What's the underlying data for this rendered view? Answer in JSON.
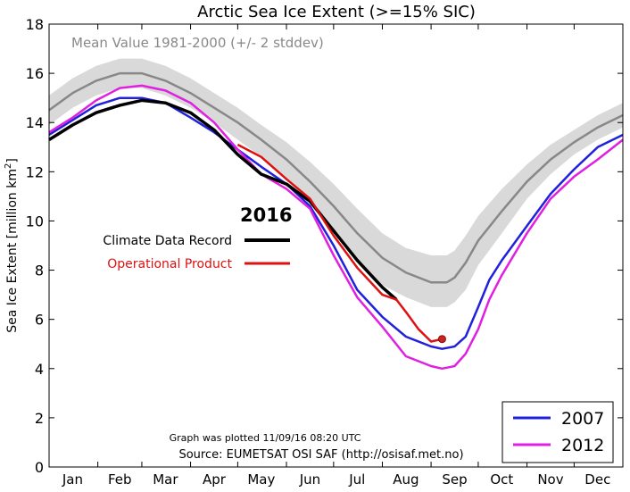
{
  "chart_data": {
    "type": "line",
    "title": "Arctic Sea Ice Extent (>=15% SIC)",
    "ylabel": "Sea Ice Extent [million km",
    "ylabel_sup": "2",
    "ylabel_close": "]",
    "xlabel": "",
    "ylim": [
      0,
      18
    ],
    "xlim": [
      0,
      365
    ],
    "yticks": [
      0,
      2,
      4,
      6,
      8,
      10,
      12,
      14,
      16,
      18
    ],
    "months": [
      {
        "label": "Jan",
        "start": 0,
        "center": 15
      },
      {
        "label": "Feb",
        "start": 31,
        "center": 45
      },
      {
        "label": "Mar",
        "start": 59,
        "center": 74
      },
      {
        "label": "Apr",
        "start": 90,
        "center": 105
      },
      {
        "label": "May",
        "start": 120,
        "center": 135
      },
      {
        "label": "Jun",
        "start": 151,
        "center": 166
      },
      {
        "label": "Jul",
        "start": 181,
        "center": 196
      },
      {
        "label": "Aug",
        "start": 212,
        "center": 227
      },
      {
        "label": "Sep",
        "start": 243,
        "center": 258
      },
      {
        "label": "Oct",
        "start": 273,
        "center": 288
      },
      {
        "label": "Nov",
        "start": 304,
        "center": 319
      },
      {
        "label": "Dec",
        "start": 334,
        "center": 349
      }
    ],
    "mean_label": "Mean Value 1981-2000 (+/- 2 stddev)",
    "mean": {
      "x": [
        0,
        15,
        30,
        45,
        59,
        74,
        90,
        105,
        120,
        135,
        151,
        166,
        181,
        196,
        212,
        227,
        243,
        253,
        258,
        265,
        273,
        288,
        304,
        319,
        334,
        349,
        365
      ],
      "y": [
        14.5,
        15.2,
        15.7,
        16.0,
        16.0,
        15.7,
        15.2,
        14.6,
        14.0,
        13.3,
        12.5,
        11.6,
        10.6,
        9.5,
        8.5,
        7.9,
        7.5,
        7.5,
        7.7,
        8.3,
        9.2,
        10.4,
        11.6,
        12.5,
        13.2,
        13.8,
        14.3
      ],
      "upper": [
        15.1,
        15.8,
        16.3,
        16.6,
        16.6,
        16.3,
        15.8,
        15.2,
        14.6,
        13.9,
        13.2,
        12.4,
        11.5,
        10.5,
        9.5,
        8.9,
        8.6,
        8.6,
        8.8,
        9.4,
        10.2,
        11.3,
        12.3,
        13.1,
        13.7,
        14.3,
        14.8
      ],
      "lower": [
        13.9,
        14.6,
        15.1,
        15.4,
        15.4,
        15.1,
        14.6,
        14.0,
        13.3,
        12.6,
        11.7,
        10.8,
        9.6,
        8.4,
        7.4,
        6.9,
        6.5,
        6.5,
        6.7,
        7.2,
        8.2,
        9.5,
        10.9,
        11.9,
        12.7,
        13.3,
        13.8
      ]
    },
    "series": [
      {
        "name": "2007",
        "color": "#2020dd",
        "x": [
          0,
          15,
          30,
          45,
          59,
          74,
          90,
          105,
          120,
          135,
          151,
          166,
          181,
          196,
          212,
          227,
          243,
          250,
          258,
          265,
          273,
          280,
          288,
          304,
          319,
          334,
          349,
          365
        ],
        "y": [
          13.5,
          14.1,
          14.7,
          15.0,
          15.0,
          14.8,
          14.2,
          13.6,
          12.9,
          12.2,
          11.5,
          10.6,
          9.0,
          7.2,
          6.1,
          5.3,
          4.9,
          4.8,
          4.9,
          5.3,
          6.5,
          7.6,
          8.4,
          9.8,
          11.1,
          12.1,
          13.0,
          13.5
        ]
      },
      {
        "name": "2012",
        "color": "#e020e0",
        "x": [
          0,
          15,
          30,
          45,
          59,
          74,
          90,
          105,
          120,
          135,
          151,
          166,
          181,
          196,
          212,
          227,
          243,
          250,
          258,
          265,
          273,
          280,
          288,
          304,
          319,
          334,
          349,
          365
        ],
        "y": [
          13.6,
          14.2,
          14.9,
          15.4,
          15.5,
          15.3,
          14.8,
          14.0,
          12.9,
          11.9,
          11.3,
          10.5,
          8.6,
          6.9,
          5.7,
          4.5,
          4.1,
          4.0,
          4.1,
          4.6,
          5.6,
          6.8,
          7.8,
          9.5,
          10.9,
          11.8,
          12.5,
          13.3
        ]
      },
      {
        "name": "Climate Data Record",
        "color": "#000000",
        "x": [
          0,
          15,
          30,
          45,
          59,
          74,
          90,
          105,
          120,
          135,
          151,
          166,
          181,
          196,
          212,
          221
        ],
        "y": [
          13.3,
          13.9,
          14.4,
          14.7,
          14.9,
          14.8,
          14.4,
          13.7,
          12.7,
          11.9,
          11.5,
          10.8,
          9.6,
          8.4,
          7.3,
          6.8
        ]
      },
      {
        "name": "Operational Product",
        "color": "#dd1111",
        "x": [
          120,
          135,
          151,
          166,
          181,
          196,
          212,
          221,
          227,
          235,
          243,
          250
        ],
        "y": [
          13.1,
          12.6,
          11.7,
          10.9,
          9.4,
          8.1,
          7.0,
          6.8,
          6.3,
          5.6,
          5.1,
          5.2
        ]
      }
    ],
    "legend_2016_title": "2016",
    "legend_2016_position": "center-left",
    "legend_years_position": "bottom-right",
    "marker": {
      "x": 250,
      "y": 5.2,
      "color": "#cc2222"
    },
    "plotted_note": "Graph was plotted 11/09/16 08:20 UTC",
    "source_note": "Source: EUMETSAT OSI SAF (http://osisaf.met.no)",
    "colors": {
      "mean_line": "#888888",
      "band": "#d9d9d9",
      "axis": "#000000"
    }
  }
}
